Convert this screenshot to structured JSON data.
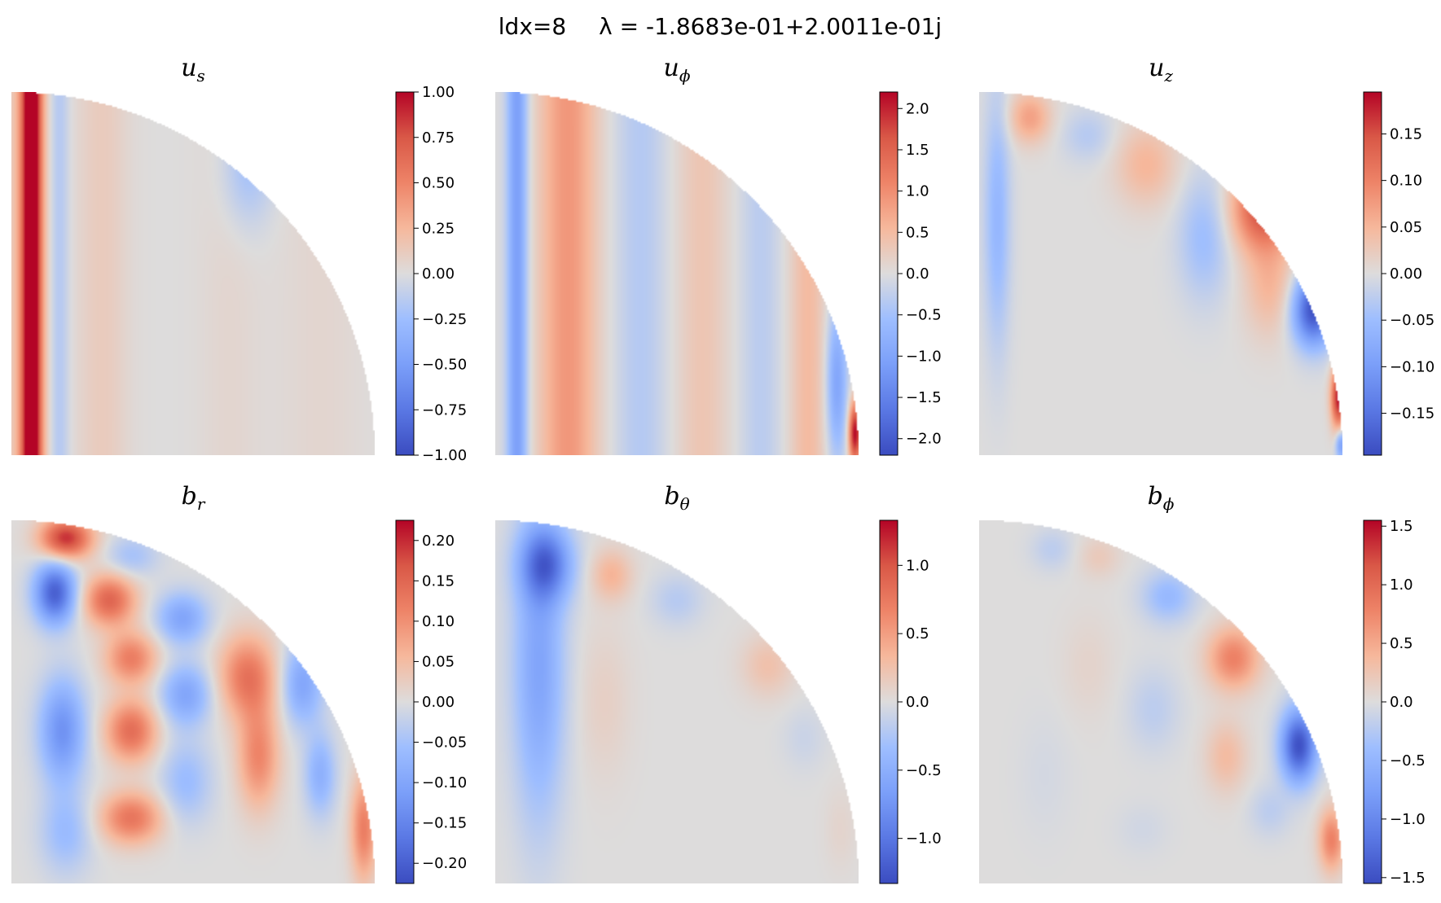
{
  "title_left": "ldx=8",
  "title_right": "λ = -1.8683e-01+2.0011e-01j",
  "chart_data": [
    {
      "type": "heatmap",
      "title": "u",
      "title_sub": "s",
      "clim": [
        -1.0,
        1.0
      ],
      "cbar_ticks": [
        -1.0,
        -0.75,
        -0.5,
        -0.25,
        0.0,
        0.25,
        0.5,
        0.75,
        1.0
      ],
      "cbar_labels": [
        "−1.00",
        "−0.75",
        "−0.50",
        "−0.25",
        "0.00",
        "0.25",
        "0.50",
        "0.75",
        "1.00"
      ],
      "blobs": [
        {
          "s": 0.055,
          "z": 0.5,
          "rs": 0.018,
          "rz": 10,
          "a": 1.0
        },
        {
          "s": 0.05,
          "z": 0.5,
          "rs": 0.035,
          "rz": 10,
          "a": 0.35
        },
        {
          "s": 0.13,
          "z": 0.5,
          "rs": 0.02,
          "rz": 10,
          "a": -0.18
        },
        {
          "s": 0.25,
          "z": 0.5,
          "rs": 0.05,
          "rz": 10,
          "a": 0.12
        },
        {
          "s": 0.6,
          "z": 0.5,
          "rs": 0.06,
          "rz": 10,
          "a": 0.05
        },
        {
          "s": 0.85,
          "z": 0.3,
          "rs": 0.08,
          "rz": 10,
          "a": 0.05
        },
        {
          "s": 0.65,
          "z": 0.8,
          "rs": 0.05,
          "rz": 0.12,
          "a": -0.25
        }
      ]
    },
    {
      "type": "heatmap",
      "title": "u",
      "title_sub": "ϕ",
      "clim": [
        -2.2,
        2.2
      ],
      "cbar_ticks": [
        -2.0,
        -1.5,
        -1.0,
        -0.5,
        0.0,
        0.5,
        1.0,
        1.5,
        2.0
      ],
      "cbar_labels": [
        "−2.0",
        "−1.5",
        "−1.0",
        "−0.5",
        "0.0",
        "0.5",
        "1.0",
        "1.5",
        "2.0"
      ],
      "blobs": [
        {
          "s": 0.06,
          "z": 0.5,
          "rs": 0.02,
          "rz": 10,
          "a": -1.1
        },
        {
          "s": 0.2,
          "z": 0.5,
          "rs": 0.055,
          "rz": 10,
          "a": 0.9
        },
        {
          "s": 0.4,
          "z": 0.5,
          "rs": 0.05,
          "rz": 10,
          "a": -0.35
        },
        {
          "s": 0.57,
          "z": 0.5,
          "rs": 0.05,
          "rz": 10,
          "a": 0.35
        },
        {
          "s": 0.73,
          "z": 0.5,
          "rs": 0.04,
          "rz": 10,
          "a": -0.3
        },
        {
          "s": 0.86,
          "z": 0.5,
          "rs": 0.035,
          "rz": 10,
          "a": 0.5
        },
        {
          "s": 0.94,
          "z": 0.2,
          "rs": 0.02,
          "rz": 0.15,
          "a": -1.0
        },
        {
          "s": 0.99,
          "z": 0.06,
          "rs": 0.012,
          "rz": 0.06,
          "a": 2.2
        }
      ]
    },
    {
      "type": "heatmap",
      "title": "u",
      "title_sub": "z",
      "clim": [
        -0.195,
        0.195
      ],
      "cbar_ticks": [
        -0.15,
        -0.1,
        -0.05,
        0.0,
        0.05,
        0.1,
        0.15
      ],
      "cbar_labels": [
        "−0.15",
        "−0.10",
        "−0.05",
        "0.00",
        "0.05",
        "0.10",
        "0.15"
      ],
      "blobs": [
        {
          "s": 0.05,
          "z": 0.65,
          "rs": 0.025,
          "rz": 0.25,
          "a": -0.06
        },
        {
          "s": 0.14,
          "z": 0.93,
          "rs": 0.04,
          "rz": 0.05,
          "a": 0.07
        },
        {
          "s": 0.3,
          "z": 0.88,
          "rs": 0.05,
          "rz": 0.05,
          "a": -0.03
        },
        {
          "s": 0.46,
          "z": 0.8,
          "rs": 0.06,
          "rz": 0.08,
          "a": 0.05
        },
        {
          "s": 0.62,
          "z": 0.6,
          "rs": 0.05,
          "rz": 0.12,
          "a": -0.05
        },
        {
          "s": 0.78,
          "z": 0.68,
          "rs": 0.06,
          "rz": 0.08,
          "a": 0.15
        },
        {
          "s": 0.8,
          "z": 0.47,
          "rs": 0.05,
          "rz": 0.1,
          "a": 0.05
        },
        {
          "s": 0.92,
          "z": 0.4,
          "rs": 0.04,
          "rz": 0.07,
          "a": -0.19
        },
        {
          "s": 0.99,
          "z": 0.16,
          "rs": 0.015,
          "rz": 0.06,
          "a": 0.19
        },
        {
          "s": 0.995,
          "z": 0.03,
          "rs": 0.01,
          "rz": 0.03,
          "a": -0.1
        }
      ]
    },
    {
      "type": "heatmap",
      "title": "b",
      "title_sub": "r",
      "clim": [
        -0.225,
        0.225
      ],
      "cbar_ticks": [
        -0.2,
        -0.15,
        -0.1,
        -0.05,
        0.0,
        0.05,
        0.1,
        0.15,
        0.2
      ],
      "cbar_labels": [
        "−0.20",
        "−0.15",
        "−0.10",
        "−0.05",
        "0.00",
        "0.05",
        "0.10",
        "0.15",
        "0.20"
      ],
      "blobs": [
        {
          "s": 0.15,
          "z": 0.95,
          "rs": 0.05,
          "rz": 0.04,
          "a": 0.2
        },
        {
          "s": 0.12,
          "z": 0.8,
          "rs": 0.04,
          "rz": 0.06,
          "a": -0.2
        },
        {
          "s": 0.27,
          "z": 0.78,
          "rs": 0.05,
          "rz": 0.05,
          "a": 0.15
        },
        {
          "s": 0.33,
          "z": 0.9,
          "rs": 0.05,
          "rz": 0.04,
          "a": -0.05
        },
        {
          "s": 0.47,
          "z": 0.73,
          "rs": 0.05,
          "rz": 0.05,
          "a": -0.1
        },
        {
          "s": 0.33,
          "z": 0.62,
          "rs": 0.05,
          "rz": 0.05,
          "a": 0.12
        },
        {
          "s": 0.48,
          "z": 0.52,
          "rs": 0.05,
          "rz": 0.06,
          "a": -0.1
        },
        {
          "s": 0.33,
          "z": 0.42,
          "rs": 0.05,
          "rz": 0.06,
          "a": 0.14
        },
        {
          "s": 0.65,
          "z": 0.57,
          "rs": 0.055,
          "rz": 0.08,
          "a": 0.13
        },
        {
          "s": 0.14,
          "z": 0.42,
          "rs": 0.045,
          "rz": 0.1,
          "a": -0.13
        },
        {
          "s": 0.33,
          "z": 0.18,
          "rs": 0.06,
          "rz": 0.05,
          "a": 0.13
        },
        {
          "s": 0.15,
          "z": 0.14,
          "rs": 0.05,
          "rz": 0.08,
          "a": -0.06
        },
        {
          "s": 0.48,
          "z": 0.28,
          "rs": 0.05,
          "rz": 0.08,
          "a": -0.06
        },
        {
          "s": 0.68,
          "z": 0.35,
          "rs": 0.04,
          "rz": 0.1,
          "a": 0.11
        },
        {
          "s": 0.8,
          "z": 0.55,
          "rs": 0.04,
          "rz": 0.08,
          "a": -0.1
        },
        {
          "s": 0.85,
          "z": 0.3,
          "rs": 0.03,
          "rz": 0.08,
          "a": -0.08
        },
        {
          "s": 0.97,
          "z": 0.15,
          "rs": 0.025,
          "rz": 0.1,
          "a": 0.12
        }
      ]
    },
    {
      "type": "heatmap",
      "title": "b",
      "title_sub": "θ",
      "clim": [
        -1.33,
        1.33
      ],
      "cbar_ticks": [
        -1.0,
        -0.5,
        0.0,
        0.5,
        1.0
      ],
      "cbar_labels": [
        "−1.0",
        "−0.5",
        "0.0",
        "0.5",
        "1.0"
      ],
      "blobs": [
        {
          "s": 0.14,
          "z": 0.88,
          "rs": 0.05,
          "rz": 0.07,
          "a": -0.9
        },
        {
          "s": 0.12,
          "z": 0.6,
          "rs": 0.05,
          "rz": 0.3,
          "a": -0.6
        },
        {
          "s": 0.32,
          "z": 0.85,
          "rs": 0.04,
          "rz": 0.05,
          "a": 0.35
        },
        {
          "s": 0.5,
          "z": 0.78,
          "rs": 0.05,
          "rz": 0.05,
          "a": -0.2
        },
        {
          "s": 0.3,
          "z": 0.5,
          "rs": 0.05,
          "rz": 0.15,
          "a": 0.12
        },
        {
          "s": 0.75,
          "z": 0.6,
          "rs": 0.05,
          "rz": 0.06,
          "a": 0.25
        },
        {
          "s": 0.85,
          "z": 0.4,
          "rs": 0.04,
          "rz": 0.06,
          "a": -0.1
        },
        {
          "s": 0.95,
          "z": 0.15,
          "rs": 0.03,
          "rz": 0.08,
          "a": 0.08
        }
      ]
    },
    {
      "type": "heatmap",
      "title": "b",
      "title_sub": "ϕ",
      "clim": [
        -1.55,
        1.55
      ],
      "cbar_ticks": [
        -1.5,
        -1.0,
        -0.5,
        0.0,
        0.5,
        1.0,
        1.5
      ],
      "cbar_labels": [
        "−1.5",
        "−1.0",
        "−0.5",
        "0.0",
        "0.5",
        "1.0",
        "1.5"
      ],
      "blobs": [
        {
          "s": 0.2,
          "z": 0.92,
          "rs": 0.04,
          "rz": 0.04,
          "a": -0.2
        },
        {
          "s": 0.33,
          "z": 0.9,
          "rs": 0.04,
          "rz": 0.04,
          "a": 0.2
        },
        {
          "s": 0.52,
          "z": 0.79,
          "rs": 0.05,
          "rz": 0.05,
          "a": -0.45
        },
        {
          "s": 0.7,
          "z": 0.62,
          "rs": 0.05,
          "rz": 0.06,
          "a": 0.8
        },
        {
          "s": 0.88,
          "z": 0.38,
          "rs": 0.035,
          "rz": 0.07,
          "a": -1.5
        },
        {
          "s": 0.97,
          "z": 0.12,
          "rs": 0.025,
          "rz": 0.06,
          "a": 0.8
        },
        {
          "s": 0.48,
          "z": 0.48,
          "rs": 0.05,
          "rz": 0.08,
          "a": -0.2
        },
        {
          "s": 0.68,
          "z": 0.35,
          "rs": 0.04,
          "rz": 0.07,
          "a": 0.35
        },
        {
          "s": 0.8,
          "z": 0.2,
          "rs": 0.04,
          "rz": 0.05,
          "a": -0.2
        },
        {
          "s": 0.3,
          "z": 0.6,
          "rs": 0.05,
          "rz": 0.1,
          "a": 0.1
        },
        {
          "s": 0.18,
          "z": 0.3,
          "rs": 0.05,
          "rz": 0.12,
          "a": -0.06
        },
        {
          "s": 0.45,
          "z": 0.15,
          "rs": 0.05,
          "rz": 0.05,
          "a": -0.08
        }
      ]
    }
  ]
}
